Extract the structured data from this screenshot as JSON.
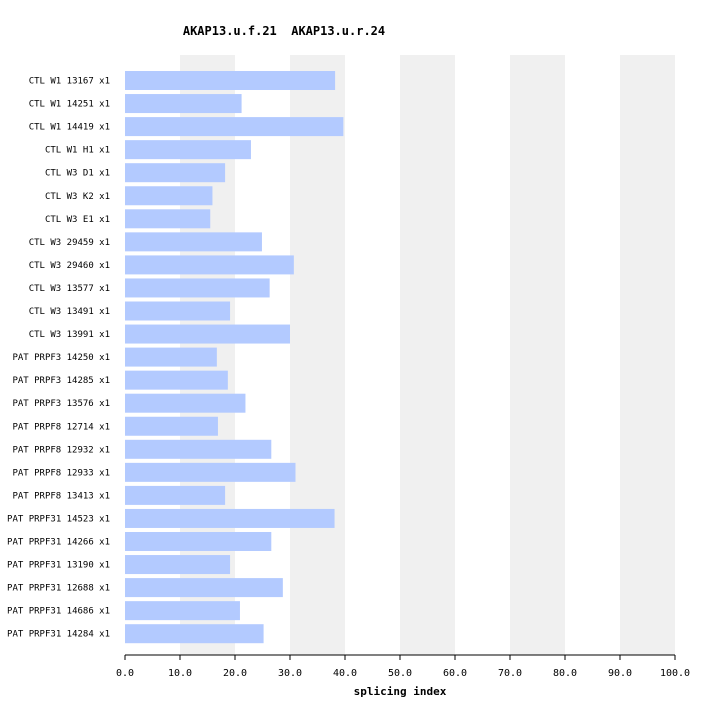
{
  "chart_data": {
    "type": "bar",
    "orientation": "horizontal",
    "title": "AKAP13.u.f.21  AKAP13.u.r.24",
    "xlabel": "splicing index",
    "ylabel": "",
    "xlim": [
      0,
      100
    ],
    "x_ticks": [
      "0.0",
      "10.0",
      "20.0",
      "30.0",
      "40.0",
      "50.0",
      "60.0",
      "70.0",
      "80.0",
      "90.0",
      "100.0"
    ],
    "grid": "alternating vertical bands",
    "categories": [
      "CTL W1 13167 x1",
      "CTL W1 14251 x1",
      "CTL W1 14419 x1",
      "CTL W1 H1 x1",
      "CTL W3 D1 x1",
      "CTL W3 K2 x1",
      "CTL W3 E1 x1",
      "CTL W3 29459 x1",
      "CTL W3 29460 x1",
      "CTL W3 13577 x1",
      "CTL W3 13491 x1",
      "CTL W3 13991 x1",
      "PAT PRPF3 14250 x1",
      "PAT PRPF3 14285 x1",
      "PAT PRPF3 13576 x1",
      "PAT PRPF8 12714 x1",
      "PAT PRPF8 12932 x1",
      "PAT PRPF8 12933 x1",
      "PAT PRPF8 13413 x1",
      "PAT PRPF31 14523 x1",
      "PAT PRPF31 14266 x1",
      "PAT PRPF31 13190 x1",
      "PAT PRPF31 12688 x1",
      "PAT PRPF31 14686 x1",
      "PAT PRPF31 14284 x1"
    ],
    "values": [
      38.2,
      21.2,
      39.7,
      22.9,
      18.2,
      15.9,
      15.5,
      24.9,
      30.7,
      26.3,
      19.1,
      30.0,
      16.7,
      18.7,
      21.9,
      16.9,
      26.6,
      31.0,
      18.2,
      38.1,
      26.6,
      19.1,
      28.7,
      20.9,
      25.2
    ],
    "colors": {
      "bar": "#b3caff",
      "band": "#f0f0f0",
      "axis": "#000000"
    }
  }
}
